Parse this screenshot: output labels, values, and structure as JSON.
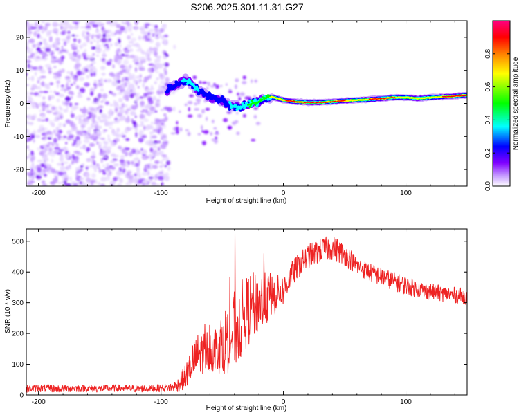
{
  "title": "S206.2025.301.11.31.G27",
  "chart_data": [
    {
      "type": "heatmap",
      "title": "S206.2025.301.11.31.G27",
      "xlabel": "Height of straight line (km)",
      "ylabel": "Frequency (Hz)",
      "xlim": [
        -210,
        150
      ],
      "ylim": [
        -25,
        25
      ],
      "xticks": [
        -200,
        -100,
        0,
        100
      ],
      "yticks": [
        20,
        10,
        0,
        -10,
        -20
      ],
      "colorbar": {
        "label": "Normalized spectral amplitude",
        "range": [
          0,
          1
        ],
        "ticks": [
          0.0,
          0.2,
          0.4,
          0.6,
          0.8
        ],
        "colors": [
          "#ffffff",
          "#c8a0ff",
          "#8000ff",
          "#0000ff",
          "#00ffff",
          "#00ff00",
          "#ffff00",
          "#ff8000",
          "#ff0000",
          "#ff0080"
        ]
      },
      "ridge": {
        "description": "dominant frequency ridge",
        "x": [
          -95,
          -90,
          -85,
          -80,
          -75,
          -70,
          -65,
          -60,
          -55,
          -50,
          -45,
          -40,
          -35,
          -30,
          -25,
          -20,
          -15,
          -10,
          -5,
          0,
          10,
          20,
          30,
          40,
          50,
          60,
          70,
          80,
          90,
          100,
          110,
          120,
          130,
          140,
          150
        ],
        "y": [
          4,
          5,
          6,
          7,
          6,
          4,
          3,
          2,
          1.5,
          1,
          -0.5,
          -1,
          -1,
          -0.5,
          0,
          0.5,
          1.5,
          2,
          1.5,
          1,
          0.5,
          0.3,
          0.3,
          0.5,
          0.8,
          1,
          1.2,
          1.5,
          1.8,
          1.8,
          1.5,
          1.8,
          2,
          2.2,
          2.5
        ],
        "amplitude": [
          0.25,
          0.3,
          0.35,
          0.4,
          0.4,
          0.35,
          0.3,
          0.3,
          0.3,
          0.3,
          0.35,
          0.4,
          0.45,
          0.5,
          0.55,
          0.6,
          0.65,
          0.7,
          0.75,
          0.8,
          0.85,
          0.9,
          0.9,
          0.85,
          0.8,
          0.75,
          0.8,
          0.85,
          0.8,
          0.75,
          0.7,
          0.75,
          0.8,
          0.8,
          0.85
        ]
      },
      "noise_region": {
        "x_from": -210,
        "x_to": -95,
        "amplitude": 0.1
      }
    },
    {
      "type": "line",
      "xlabel": "Height of straight line (km)",
      "ylabel": "SNR (10 * v/v)",
      "xlim": [
        -210,
        150
      ],
      "ylim": [
        0,
        540
      ],
      "xticks": [
        -200,
        -100,
        0,
        100
      ],
      "yticks": [
        0,
        100,
        200,
        300,
        400,
        500
      ],
      "series": [
        {
          "name": "SNR",
          "color": "#ee2222",
          "x": [
            -210,
            -200,
            -190,
            -180,
            -170,
            -160,
            -150,
            -140,
            -130,
            -120,
            -110,
            -100,
            -90,
            -85,
            -80,
            -75,
            -70,
            -65,
            -60,
            -55,
            -50,
            -45,
            -40,
            -35,
            -30,
            -25,
            -20,
            -15,
            -10,
            -5,
            0,
            5,
            10,
            15,
            20,
            25,
            30,
            35,
            40,
            45,
            50,
            55,
            60,
            70,
            80,
            90,
            100,
            110,
            120,
            130,
            140,
            150
          ],
          "values": [
            20,
            22,
            21,
            20,
            22,
            21,
            20,
            22,
            21,
            20,
            21,
            22,
            25,
            35,
            60,
            100,
            130,
            140,
            145,
            150,
            170,
            190,
            210,
            240,
            270,
            290,
            300,
            310,
            320,
            330,
            340,
            380,
            410,
            430,
            450,
            460,
            470,
            475,
            478,
            470,
            455,
            440,
            420,
            400,
            385,
            370,
            355,
            345,
            335,
            330,
            325,
            320
          ],
          "noise": [
            12,
            12,
            12,
            12,
            12,
            12,
            12,
            12,
            12,
            12,
            12,
            12,
            15,
            25,
            40,
            60,
            70,
            70,
            70,
            80,
            100,
            120,
            130,
            130,
            120,
            110,
            100,
            90,
            80,
            60,
            50,
            45,
            40,
            40,
            40,
            40,
            40,
            40,
            40,
            40,
            35,
            35,
            30,
            30,
            30,
            30,
            30,
            28,
            28,
            26,
            26,
            26
          ]
        }
      ]
    }
  ]
}
